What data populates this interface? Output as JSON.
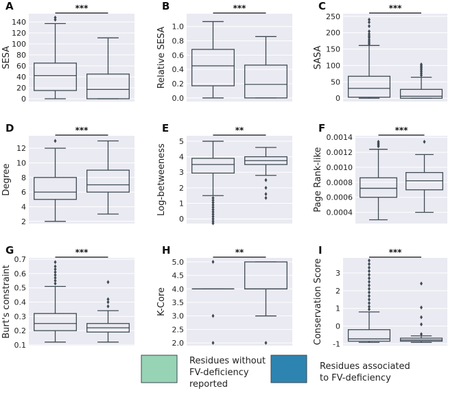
{
  "colors": {
    "group1": "#97d3b5",
    "group2": "#2e84b0",
    "background": "#eaeaf2",
    "line": "#3e4a52"
  },
  "legend": {
    "entries": [
      {
        "label_lines": [
          "Residues without",
          "FV-deficiency",
          "reported"
        ]
      },
      {
        "label_lines": [
          "Residues associated",
          "to FV-deficiency"
        ]
      }
    ]
  },
  "chart_data": [
    {
      "panel": "A",
      "type": "box",
      "ylabel": "SESA",
      "ylim": [
        -5,
        155
      ],
      "yticks": [
        0,
        20,
        40,
        60,
        80,
        100,
        120,
        140
      ],
      "tick_labels": [
        "0",
        "20",
        "40",
        "60",
        "80",
        "100",
        "120",
        "140"
      ],
      "significance": "***",
      "groups": [
        {
          "name": "Residues without FV-deficiency reported",
          "q1": 15,
          "median": 42,
          "q3": 65,
          "whisker_low": 0,
          "whisker_high": 137,
          "fliers": [
            144,
            148
          ]
        },
        {
          "name": "Residues associated to FV-deficiency",
          "q1": 0,
          "median": 17,
          "q3": 45,
          "whisker_low": 0,
          "whisker_high": 111,
          "fliers": []
        }
      ]
    },
    {
      "panel": "B",
      "type": "box",
      "ylabel": "Relative SESA",
      "ylim": [
        -0.05,
        1.18
      ],
      "yticks": [
        0,
        0.2,
        0.4,
        0.6,
        0.8,
        1.0
      ],
      "tick_labels": [
        "0.0",
        "0.2",
        "0.4",
        "0.6",
        "0.8",
        "1.0"
      ],
      "significance": "***",
      "groups": [
        {
          "name": "Residues without FV-deficiency reported",
          "q1": 0.17,
          "median": 0.45,
          "q3": 0.68,
          "whisker_low": 0.0,
          "whisker_high": 1.07,
          "fliers": []
        },
        {
          "name": "Residues associated to FV-deficiency",
          "q1": 0.0,
          "median": 0.19,
          "q3": 0.46,
          "whisker_low": 0.0,
          "whisker_high": 0.86,
          "fliers": []
        }
      ]
    },
    {
      "panel": "C",
      "type": "box",
      "ylabel": "SASA",
      "ylim": [
        -10,
        258
      ],
      "yticks": [
        0,
        50,
        100,
        150,
        200,
        250
      ],
      "tick_labels": [
        "0",
        "50",
        "100",
        "150",
        "200",
        "250"
      ],
      "significance": "***",
      "groups": [
        {
          "name": "Residues without FV-deficiency reported",
          "q1": 3,
          "median": 30,
          "q3": 67,
          "whisker_low": 0,
          "whisker_high": 161,
          "fliers": [
            166,
            172,
            178,
            185,
            190,
            196,
            204,
            220,
            232,
            240
          ]
        },
        {
          "name": "Residues associated to FV-deficiency",
          "q1": 0,
          "median": 6,
          "q3": 27,
          "whisker_low": 0,
          "whisker_high": 64,
          "fliers": [
            70,
            76,
            82,
            88,
            93,
            98,
            103
          ]
        }
      ]
    },
    {
      "panel": "D",
      "type": "box",
      "ylabel": "Degree",
      "ylim": [
        1.7,
        13.7
      ],
      "yticks": [
        2,
        4,
        6,
        8,
        10,
        12
      ],
      "tick_labels": [
        "2",
        "4",
        "6",
        "8",
        "10",
        "12"
      ],
      "significance": "***",
      "groups": [
        {
          "name": "Residues without FV-deficiency reported",
          "q1": 5,
          "median": 6,
          "q3": 8,
          "whisker_low": 2,
          "whisker_high": 12,
          "fliers": [
            13
          ]
        },
        {
          "name": "Residues associated to FV-deficiency",
          "q1": 6,
          "median": 7,
          "q3": 9,
          "whisker_low": 3,
          "whisker_high": 13,
          "fliers": []
        }
      ]
    },
    {
      "panel": "E",
      "type": "box",
      "ylabel": "Log-betweeness",
      "ylim": [
        -0.3,
        5.35
      ],
      "yticks": [
        0,
        1,
        2,
        3,
        4,
        5
      ],
      "tick_labels": [
        "0",
        "1",
        "2",
        "3",
        "4",
        "5"
      ],
      "significance": "**",
      "groups": [
        {
          "name": "Residues without FV-deficiency reported",
          "q1": 2.95,
          "median": 3.5,
          "q3": 3.9,
          "whisker_low": 1.5,
          "whisker_high": 5.0,
          "fliers": [
            1.35,
            1.2,
            1.05,
            0.9,
            0.75,
            0.6,
            0.45,
            0.3,
            0.15,
            0.0,
            -0.15,
            -0.28
          ]
        },
        {
          "name": "Residues associated to FV-deficiency",
          "q1": 3.5,
          "median": 3.75,
          "q3": 4.0,
          "whisker_low": 2.8,
          "whisker_high": 4.6,
          "fliers": [
            2.5,
            2.0,
            1.6,
            1.35
          ]
        }
      ]
    },
    {
      "panel": "F",
      "type": "box",
      "ylabel": "Page Rank-like",
      "ylim": [
        0.00025,
        0.00142
      ],
      "yticks": [
        0.0004,
        0.0006,
        0.0008,
        0.001,
        0.0012,
        0.0014
      ],
      "tick_labels": [
        "0.0004",
        "0.0006",
        "0.0008",
        "0.0010",
        "0.0012",
        "0.0014"
      ],
      "significance": "***",
      "groups": [
        {
          "name": "Residues without FV-deficiency reported",
          "q1": 0.0006,
          "median": 0.00072,
          "q3": 0.00086,
          "whisker_low": 0.0003,
          "whisker_high": 0.00124,
          "fliers": [
            0.00128,
            0.0013,
            0.00132,
            0.00134
          ]
        },
        {
          "name": "Residues associated to FV-deficiency",
          "q1": 0.0007,
          "median": 0.00082,
          "q3": 0.00093,
          "whisker_low": 0.0004,
          "whisker_high": 0.00117,
          "fliers": [
            0.00134
          ]
        }
      ]
    },
    {
      "panel": "G",
      "type": "box",
      "ylabel": "Burt's constraint",
      "ylim": [
        0.095,
        0.71
      ],
      "yticks": [
        0.1,
        0.2,
        0.3,
        0.4,
        0.5,
        0.6,
        0.7
      ],
      "tick_labels": [
        "0.1",
        "0.2",
        "0.3",
        "0.4",
        "0.5",
        "0.6",
        "0.7"
      ],
      "significance": "***",
      "groups": [
        {
          "name": "Residues without FV-deficiency reported",
          "q1": 0.2,
          "median": 0.25,
          "q3": 0.32,
          "whisker_low": 0.12,
          "whisker_high": 0.51,
          "fliers": [
            0.53,
            0.55,
            0.57,
            0.59,
            0.61,
            0.63,
            0.65,
            0.68
          ]
        },
        {
          "name": "Residues associated to FV-deficiency",
          "q1": 0.19,
          "median": 0.22,
          "q3": 0.25,
          "whisker_low": 0.12,
          "whisker_high": 0.34,
          "fliers": [
            0.37,
            0.4,
            0.42,
            0.54
          ]
        }
      ]
    },
    {
      "panel": "H",
      "type": "box",
      "ylabel": "K-Core",
      "ylim": [
        1.9,
        5.15
      ],
      "yticks": [
        2.0,
        2.5,
        3.0,
        3.5,
        4.0,
        4.5,
        5.0
      ],
      "tick_labels": [
        "2.0",
        "2.5",
        "3.0",
        "3.5",
        "4.0",
        "4.5",
        "5.0"
      ],
      "significance": "**",
      "groups": [
        {
          "name": "Residues without FV-deficiency reported",
          "q1": 4.0,
          "median": 4.0,
          "q3": 4.0,
          "whisker_low": 4.0,
          "whisker_high": 4.0,
          "fliers": [
            5.0,
            3.0,
            2.0
          ]
        },
        {
          "name": "Residues associated to FV-deficiency",
          "q1": 4.0,
          "median": 4.0,
          "q3": 5.0,
          "whisker_low": 3.0,
          "whisker_high": 5.0,
          "fliers": [
            2.0
          ]
        }
      ]
    },
    {
      "panel": "I",
      "type": "box",
      "ylabel": "Conservation Score",
      "ylim": [
        -1.1,
        3.85
      ],
      "yticks": [
        -1,
        0,
        1,
        2,
        3
      ],
      "tick_labels": [
        "-1",
        "0",
        "1",
        "2",
        "3"
      ],
      "significance": "***",
      "groups": [
        {
          "name": "Residues without FV-deficiency reported",
          "q1": -0.85,
          "median": -0.72,
          "q3": -0.2,
          "whisker_low": -0.92,
          "whisker_high": 0.8,
          "fliers": [
            0.95,
            1.1,
            1.3,
            1.5,
            1.7,
            1.9,
            2.1,
            2.3,
            2.5,
            2.7,
            2.9,
            3.1,
            3.3,
            3.5,
            3.7
          ]
        },
        {
          "name": "Residues associated to FV-deficiency",
          "q1": -0.85,
          "median": -0.78,
          "q3": -0.68,
          "whisker_low": -0.92,
          "whisker_high": -0.55,
          "fliers": [
            -0.45,
            0.1,
            0.5,
            1.05,
            2.4
          ]
        }
      ]
    }
  ]
}
